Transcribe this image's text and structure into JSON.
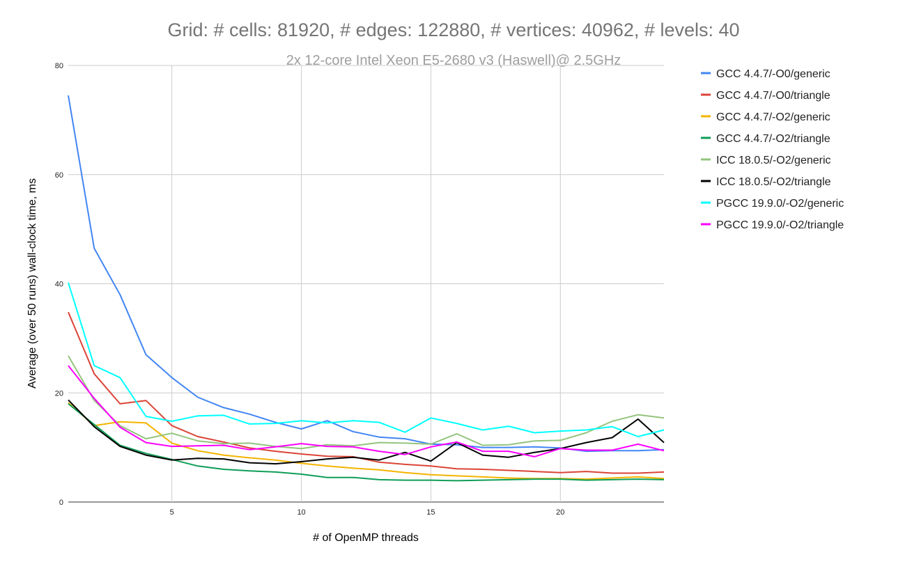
{
  "chart_data": {
    "type": "line",
    "title": "Grid: # cells: 81920, # edges: 122880, # vertices: 40962, # levels: 40",
    "subtitle": "2x 12-core Intel Xeon E5-2680 v3 (Haswell)@ 2.5GHz",
    "xlabel": "# of OpenMP threads",
    "ylabel": "Average (over 50 runs) wall-clock time, ms",
    "xlim": [
      1,
      24
    ],
    "ylim": [
      0,
      80
    ],
    "x_ticks": [
      5,
      10,
      15,
      20
    ],
    "y_ticks": [
      0,
      20,
      40,
      60,
      80
    ],
    "grid": true,
    "legend_position": "right",
    "x": [
      1,
      2,
      3,
      4,
      5,
      6,
      7,
      8,
      9,
      10,
      11,
      12,
      13,
      14,
      15,
      16,
      17,
      18,
      19,
      20,
      21,
      22,
      23,
      24
    ],
    "series": [
      {
        "name": "GCC 4.4.7/-O0/generic",
        "color": "#4285f4",
        "values": [
          74.5,
          46.5,
          38,
          27,
          22.8,
          19.2,
          17.3,
          16.1,
          14.6,
          13.4,
          14.9,
          12.9,
          11.9,
          11.6,
          10.6,
          10.5,
          10,
          10,
          10.1,
          9.9,
          9.3,
          9.4,
          9.4,
          9.6
        ]
      },
      {
        "name": "GCC 4.4.7/-O0/triangle",
        "color": "#db4437",
        "values": [
          34.8,
          23.5,
          18,
          18.6,
          14,
          12,
          11,
          9.9,
          9.3,
          8.8,
          8.4,
          8.3,
          7.3,
          6.9,
          6.6,
          6.1,
          6,
          5.8,
          5.6,
          5.4,
          5.6,
          5.3,
          5.3,
          5.5
        ]
      },
      {
        "name": "GCC 4.4.7/-O2/generic",
        "color": "#f4b400",
        "values": [
          18.2,
          14,
          14.7,
          14.5,
          10.8,
          9.4,
          8.6,
          8.1,
          7.7,
          7.1,
          6.6,
          6.2,
          5.9,
          5.4,
          5,
          4.8,
          4.6,
          4.4,
          4.3,
          4.3,
          4.2,
          4.4,
          4.6,
          4.3
        ]
      },
      {
        "name": "GCC 4.4.7/-O2/triangle",
        "color": "#0f9d58",
        "values": [
          18,
          14.2,
          10.4,
          8.9,
          7.8,
          6.6,
          6,
          5.7,
          5.5,
          5.1,
          4.5,
          4.5,
          4.1,
          4,
          4,
          3.9,
          4,
          4.1,
          4.2,
          4.2,
          4,
          4.1,
          4.2,
          4.1
        ]
      },
      {
        "name": "ICC 18.0.5/-O2/generic",
        "color": "#93c47d",
        "values": [
          26.8,
          18.6,
          14,
          11.6,
          12.6,
          11.2,
          10.7,
          10.8,
          10.2,
          9.8,
          10.5,
          10.3,
          10.9,
          10.8,
          10.6,
          12.5,
          10.4,
          10.5,
          11.2,
          11.3,
          12.7,
          14.8,
          16,
          15.4
        ]
      },
      {
        "name": "ICC 18.0.5/-O2/triangle",
        "color": "#000000",
        "values": [
          18.7,
          13.8,
          10.2,
          8.6,
          7.7,
          8,
          7.9,
          7.2,
          7,
          7.4,
          7.9,
          8.2,
          7.7,
          9.1,
          7.5,
          10.9,
          8.6,
          8.2,
          9.1,
          9.8,
          10.9,
          11.8,
          15.2,
          10.9
        ]
      },
      {
        "name": "PGCC 19.9.0/-O2/generic",
        "color": "#00ffff",
        "values": [
          40.2,
          25,
          22.8,
          15.7,
          14.8,
          15.8,
          15.9,
          14.3,
          14.4,
          14.9,
          14.5,
          14.9,
          14.6,
          12.8,
          15.4,
          14.4,
          13.2,
          13.9,
          12.7,
          13,
          13.2,
          13.8,
          12,
          13.2
        ]
      },
      {
        "name": "PGCC 19.9.0/-O2/triangle",
        "color": "#ff00ff",
        "values": [
          25,
          19,
          13.7,
          10.9,
          10.2,
          10.3,
          10.4,
          9.6,
          10.1,
          10.7,
          10.2,
          10.1,
          9.3,
          8.7,
          10.1,
          11,
          9.3,
          9.3,
          8.3,
          9.8,
          9.5,
          9.5,
          10.6,
          9.4
        ]
      }
    ]
  }
}
